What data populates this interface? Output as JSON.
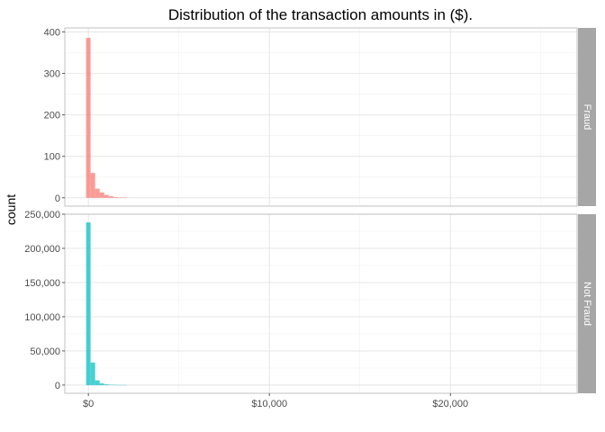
{
  "chart_data": {
    "type": "bar",
    "title": "Distribution of the transaction amounts in ($).",
    "xlabel": "",
    "ylabel": "count",
    "grid": true,
    "legend": "none",
    "bin_width": 250,
    "x_ticks": [
      {
        "value": 0,
        "label": "$0"
      },
      {
        "value": 10000,
        "label": "$10,000"
      },
      {
        "value": 20000,
        "label": "$20,000"
      }
    ],
    "xlim": [
      -1300,
      27000
    ],
    "panels": [
      {
        "strip_label": "Fraud",
        "color": "#F8766D",
        "ylim": [
          -20,
          410
        ],
        "y_ticks": [
          {
            "value": 0,
            "label": "0"
          },
          {
            "value": 100,
            "label": "100"
          },
          {
            "value": 200,
            "label": "200"
          },
          {
            "value": 300,
            "label": "300"
          },
          {
            "value": 400,
            "label": "400"
          }
        ],
        "bins": [
          {
            "x": 0,
            "count": 386
          },
          {
            "x": 250,
            "count": 60
          },
          {
            "x": 500,
            "count": 22
          },
          {
            "x": 750,
            "count": 13
          },
          {
            "x": 1000,
            "count": 7
          },
          {
            "x": 1250,
            "count": 4
          },
          {
            "x": 1500,
            "count": 2
          },
          {
            "x": 1750,
            "count": 1
          },
          {
            "x": 2000,
            "count": 1
          }
        ]
      },
      {
        "strip_label": "Not Fraud",
        "color": "#00BFC4",
        "ylim": [
          -12000,
          250000
        ],
        "y_ticks": [
          {
            "value": 0,
            "label": "0"
          },
          {
            "value": 50000,
            "label": "50,000"
          },
          {
            "value": 100000,
            "label": "100,000"
          },
          {
            "value": 150000,
            "label": "150,000"
          },
          {
            "value": 200000,
            "label": "200,000"
          },
          {
            "value": 250000,
            "label": "250,000"
          }
        ],
        "bins": [
          {
            "x": 0,
            "count": 238000
          },
          {
            "x": 250,
            "count": 33000
          },
          {
            "x": 500,
            "count": 7000
          },
          {
            "x": 750,
            "count": 2500
          },
          {
            "x": 1000,
            "count": 1200
          },
          {
            "x": 1250,
            "count": 600
          },
          {
            "x": 1500,
            "count": 300
          },
          {
            "x": 1750,
            "count": 150
          },
          {
            "x": 2000,
            "count": 80
          }
        ]
      }
    ]
  }
}
